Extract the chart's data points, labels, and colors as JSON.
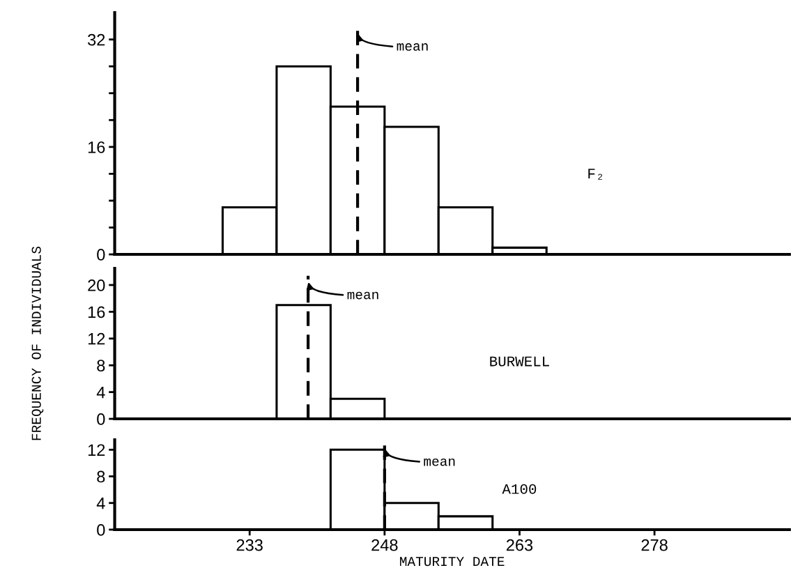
{
  "chart_data": [
    {
      "type": "histogram",
      "bins": [
        230,
        236,
        242,
        248,
        254,
        260,
        266
      ],
      "values": [
        7,
        28,
        22,
        19,
        7,
        1
      ],
      "color": "#ffffff",
      "xlim": [
        218,
        293
      ],
      "ylim": [
        0,
        36
      ],
      "yticks": [
        0,
        {
          "value": 4,
          "label": null
        },
        {
          "value": 8,
          "label": null
        },
        {
          "value": 12,
          "label": null
        },
        16,
        {
          "value": 20,
          "label": null
        },
        {
          "value": 24,
          "label": null
        },
        {
          "value": 28,
          "label": null
        },
        32
      ],
      "tick_labels": "y",
      "grid": false,
      "legend": false,
      "ref_lines": [
        {
          "axis": "x",
          "value": 245,
          "label": "mean",
          "color": "#000000",
          "line_style": "dashed"
        }
      ],
      "annotations": [
        "F₂"
      ]
    },
    {
      "type": "histogram",
      "bins": [
        236,
        242,
        248
      ],
      "values": [
        17,
        3
      ],
      "color": "#ffffff",
      "xlim": [
        218,
        293
      ],
      "ylim": [
        0,
        22.5
      ],
      "yticks": [
        0,
        4,
        8,
        12,
        16,
        20
      ],
      "tick_labels": "y",
      "grid": false,
      "legend": false,
      "ylabel": "FREQUENCY OF INDIVIDUALS",
      "ref_lines": [
        {
          "axis": "x",
          "value": 239.5,
          "label": "mean",
          "color": "#000000",
          "line_style": "dashed"
        }
      ],
      "annotations": [
        "BURWELL"
      ]
    },
    {
      "type": "histogram",
      "bins": [
        242,
        248,
        254,
        260
      ],
      "values": [
        12,
        4,
        2
      ],
      "color": "#ffffff",
      "xlim": [
        218,
        293
      ],
      "ylim": [
        0,
        13.5
      ],
      "yticks": [
        0,
        4,
        8,
        12
      ],
      "xticks": [
        233,
        248,
        263,
        278
      ],
      "grid": false,
      "legend": false,
      "xlabel": "MATURITY DATE",
      "ref_lines": [
        {
          "axis": "x",
          "value": 248,
          "label": "mean",
          "color": "#000000",
          "line_style": "dashed"
        }
      ],
      "annotations": [
        "A100"
      ]
    }
  ]
}
